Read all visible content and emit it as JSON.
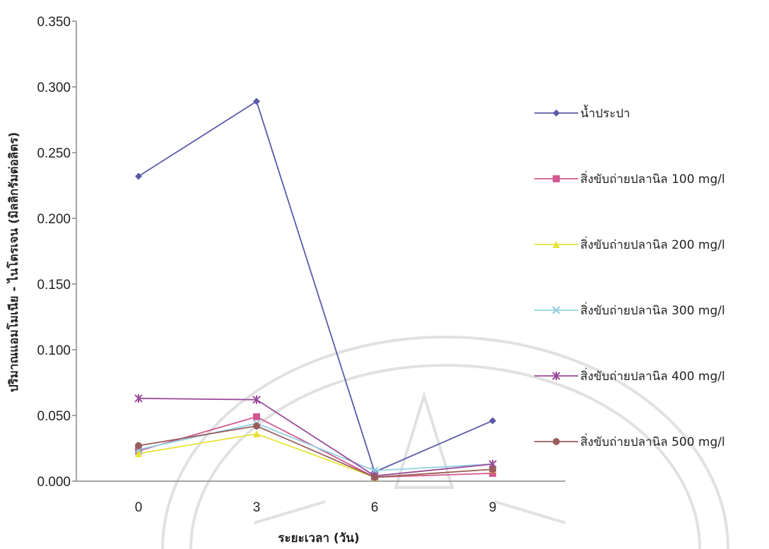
{
  "chart_data": {
    "type": "line",
    "title": "",
    "xlabel": "ระยะเวลา (วัน)",
    "ylabel": "ปริมาณแอมโมเนีย - ไนโตรเจน (มิลลิกรัมต่อลิตร)",
    "categories": [
      "0",
      "3",
      "6",
      "9"
    ],
    "ylim": [
      0,
      0.35
    ],
    "yticks": [
      "0.000",
      "0.050",
      "0.100",
      "0.150",
      "0.200",
      "0.250",
      "0.300",
      "0.350"
    ],
    "grid": false,
    "legend_position": "right",
    "series": [
      {
        "name": "น้ำประปา",
        "values": [
          0.232,
          0.289,
          0.007,
          0.046
        ],
        "color": "#5b5aa8",
        "marker": "diamond"
      },
      {
        "name": "สิ่งขับถ่ายปลานิล 100 mg/l",
        "values": [
          0.023,
          0.049,
          0.003,
          0.006
        ],
        "color": "#d3588f",
        "marker": "square"
      },
      {
        "name": "สิ่งขับถ่ายปลานิล  200 mg/l",
        "values": [
          0.021,
          0.036,
          0.003,
          0.009
        ],
        "color": "#e6e336",
        "marker": "triangle"
      },
      {
        "name": "สิ่งขับถ่ายปลานิล  300 mg/l",
        "values": [
          0.024,
          0.044,
          0.008,
          0.013
        ],
        "color": "#8fd0e0",
        "marker": "x"
      },
      {
        "name": "สิ่งขับถ่ายปลานิล  400 mg/l",
        "values": [
          0.063,
          0.062,
          0.004,
          0.013
        ],
        "color": "#9a4a9a",
        "marker": "star"
      },
      {
        "name": "สิ่งขับถ่ายปลานิล  500 mg/l",
        "values": [
          0.027,
          0.042,
          0.003,
          0.009
        ],
        "color": "#9a5d5d",
        "marker": "circle"
      }
    ]
  }
}
